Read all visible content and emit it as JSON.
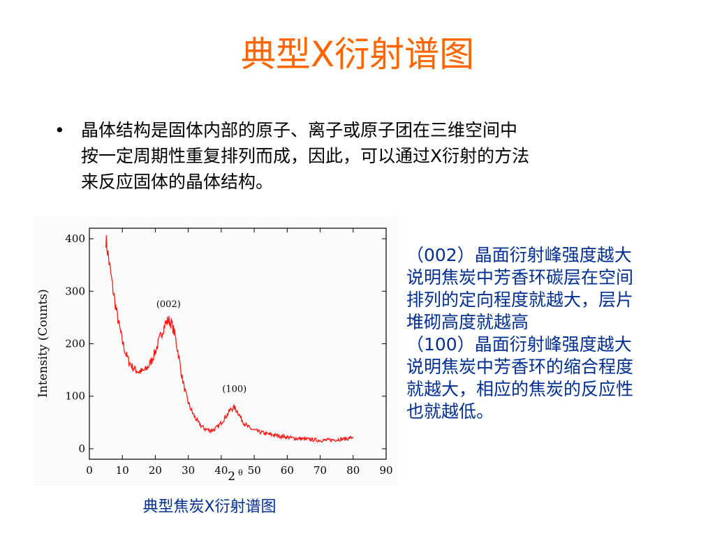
{
  "slide": {
    "title": "典型X衍射谱图",
    "bullet": {
      "marker": "•",
      "lines": [
        "晶体结构是固体内部的原子、离子或原子团在三维空间中",
        "按一定周期性重复排列而成，因此，可以通过X衍射的方法",
        "来反应固体的晶体结构。"
      ]
    },
    "side_note": {
      "lines": [
        "（002）晶面衍射峰强度越大",
        "说明焦炭中芳香环碳层在空间",
        "排列的定向程度就越大，层片",
        "堆砌高度就越高",
        "（100）晶面衍射峰强度越大",
        "说明焦炭中芳香环的缩合程度",
        "就越大，相应的焦炭的反应性",
        "也就越低。"
      ]
    },
    "caption": "典型焦炭X衍射谱图"
  },
  "colors": {
    "title": "#ff6600",
    "note_text": "#002f8f",
    "curve": "#ff1a1a"
  },
  "chart_data": {
    "type": "line",
    "xlabel": "2",
    "xlabel_superscript": "θ",
    "ylabel": "Intensity (Counts)",
    "xlim": [
      0,
      90
    ],
    "ylim": [
      -20,
      420
    ],
    "xticks": [
      0,
      10,
      20,
      30,
      40,
      50,
      60,
      70,
      80,
      90
    ],
    "yticks": [
      0,
      100,
      200,
      300,
      400
    ],
    "grid": false,
    "series": [
      {
        "x": [
          5,
          6,
          7,
          8,
          9,
          10,
          11,
          12,
          13,
          14,
          15,
          16,
          17,
          18,
          19,
          20,
          21,
          22,
          23,
          24,
          25,
          26,
          27,
          28,
          29,
          30,
          31,
          32,
          33,
          34,
          35,
          36,
          37,
          38,
          39,
          40,
          41,
          42,
          43,
          44,
          45,
          46,
          47,
          48,
          49,
          50,
          52,
          54,
          56,
          58,
          60,
          62,
          64,
          66,
          68,
          70,
          72,
          74,
          76,
          78,
          80
        ],
        "y": [
          400,
          355,
          310,
          270,
          235,
          205,
          182,
          166,
          156,
          150,
          147,
          147,
          150,
          158,
          170,
          185,
          203,
          222,
          238,
          245,
          238,
          215,
          180,
          140,
          110,
          88,
          72,
          60,
          50,
          43,
          38,
          36,
          35,
          37,
          42,
          50,
          58,
          67,
          76,
          78,
          70,
          58,
          48,
          42,
          38,
          35,
          31,
          28,
          26,
          24,
          22,
          20,
          19,
          18,
          17,
          16,
          16,
          17,
          18,
          19,
          22
        ]
      }
    ],
    "annotations": [
      {
        "text": "(002)",
        "x": 24,
        "y": 270
      },
      {
        "text": "(100)",
        "x": 44,
        "y": 108
      }
    ]
  }
}
